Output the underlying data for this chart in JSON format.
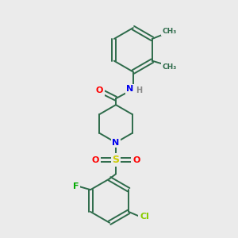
{
  "background_color": "#ebebeb",
  "bond_color": "#2d6b4a",
  "atom_colors": {
    "N": "#0000ee",
    "O": "#ff0000",
    "S": "#cccc00",
    "F": "#00aa00",
    "Cl": "#88cc00",
    "H": "#888888",
    "C": "#2d6b4a"
  },
  "figsize": [
    3.0,
    3.0
  ],
  "dpi": 100,
  "lw": 1.4
}
